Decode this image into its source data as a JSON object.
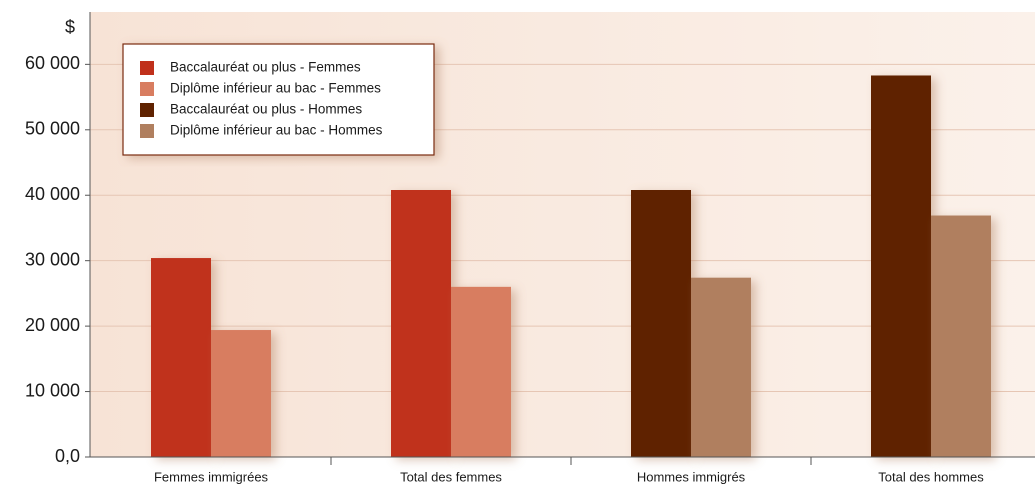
{
  "chart_data": {
    "type": "bar",
    "y_axis_label": "$",
    "categories": [
      "Femmes immigrées",
      "Total des femmes",
      "Hommes immigrés",
      "Total des hommes"
    ],
    "series": [
      {
        "name": "Baccalauréat ou plus - Femmes",
        "color": "#c0301b",
        "values": [
          30400,
          40800,
          null,
          null
        ]
      },
      {
        "name": "Diplôme inférieur au bac - Femmes",
        "color": "#d87d60",
        "values": [
          19400,
          26000,
          null,
          null
        ]
      },
      {
        "name": "Baccalauréat ou plus - Hommes",
        "color": "#5f2200",
        "values": [
          null,
          null,
          40800,
          58300
        ]
      },
      {
        "name": "Diplôme inférieur au bac - Hommes",
        "color": "#b07f5f",
        "values": [
          null,
          null,
          27400,
          36900
        ]
      }
    ],
    "ylim": [
      0,
      68000
    ],
    "yticks": [
      {
        "value": 0,
        "label": "0,0"
      },
      {
        "value": 10000,
        "label": "10 000"
      },
      {
        "value": 20000,
        "label": "20 000"
      },
      {
        "value": 30000,
        "label": "30 000"
      },
      {
        "value": 40000,
        "label": "40 000"
      },
      {
        "value": 50000,
        "label": "50 000"
      },
      {
        "value": 60000,
        "label": "60 000"
      }
    ],
    "grid": true,
    "legend_position": "top-left"
  }
}
